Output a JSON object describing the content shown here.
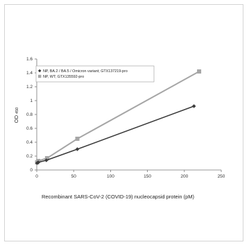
{
  "chart_data": {
    "type": "line",
    "xlabel": "Recombinant SARS-CoV-2 (COVID-19) nucleocapsid protein (pM)",
    "ylabel_main": "OD",
    "ylabel_sub": "450",
    "xlim": [
      0,
      250
    ],
    "ylim": [
      0,
      1.6
    ],
    "xticks": [
      "0",
      "50",
      "100",
      "150",
      "200",
      "250"
    ],
    "yticks": [
      "0",
      "0.2",
      "0.4",
      "0.6",
      "0.8",
      "1",
      "1.2",
      "1.4",
      "1.6"
    ],
    "legend_position": "top-left",
    "grid": false,
    "series": [
      {
        "name": "NP, BA.2 / BA.5 / Omicron variant; GTX137219-pro",
        "color": "#3a3a3a",
        "marker": "diamond",
        "x": [
          0.5,
          2,
          13,
          55,
          213
        ],
        "y": [
          0.1,
          0.11,
          0.14,
          0.3,
          0.92
        ]
      },
      {
        "name": "NP, WT; GTX135592-pro",
        "color": "#a6a6a6",
        "marker": "square",
        "x": [
          0.5,
          2,
          14,
          55,
          220
        ],
        "y": [
          0.11,
          0.13,
          0.17,
          0.45,
          1.42
        ]
      }
    ]
  }
}
